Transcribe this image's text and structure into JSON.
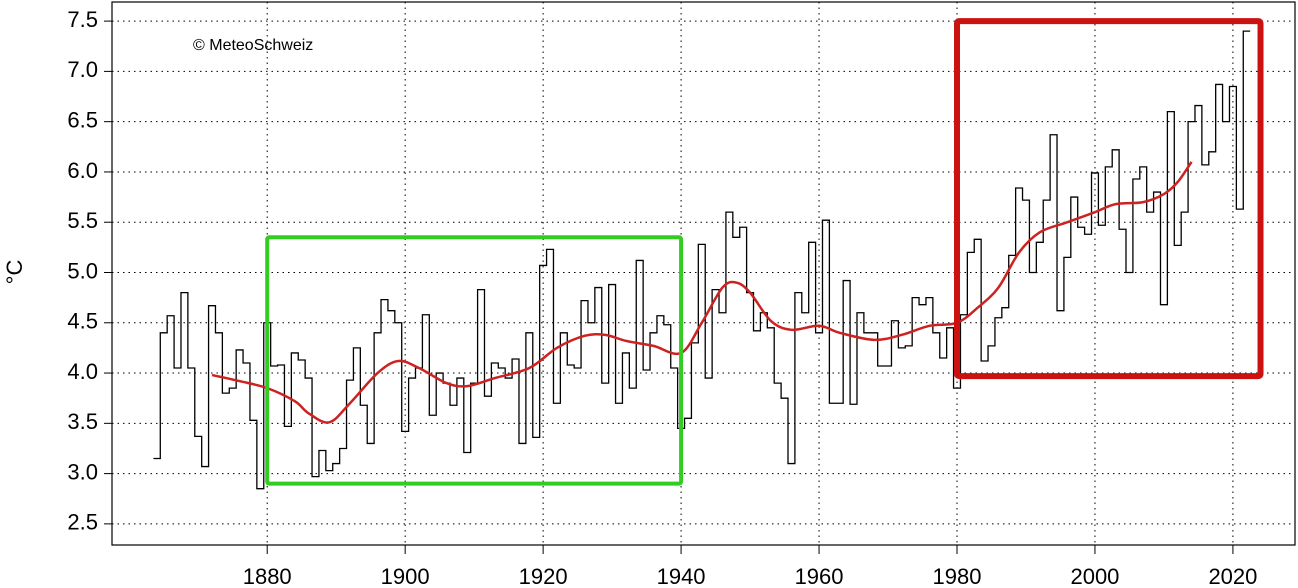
{
  "chart_data": {
    "type": "step",
    "annotation": "© MeteoSchweiz",
    "y_label": "°C",
    "x": [
      1864,
      1865,
      1866,
      1867,
      1868,
      1869,
      1870,
      1871,
      1872,
      1873,
      1874,
      1875,
      1876,
      1877,
      1878,
      1879,
      1880,
      1881,
      1882,
      1883,
      1884,
      1885,
      1886,
      1887,
      1888,
      1889,
      1890,
      1891,
      1892,
      1893,
      1894,
      1895,
      1896,
      1897,
      1898,
      1899,
      1900,
      1901,
      1902,
      1903,
      1904,
      1905,
      1906,
      1907,
      1908,
      1909,
      1910,
      1911,
      1912,
      1913,
      1914,
      1915,
      1916,
      1917,
      1918,
      1919,
      1920,
      1921,
      1922,
      1923,
      1924,
      1925,
      1926,
      1927,
      1928,
      1929,
      1930,
      1931,
      1932,
      1933,
      1934,
      1935,
      1936,
      1937,
      1938,
      1939,
      1940,
      1941,
      1942,
      1943,
      1944,
      1945,
      1946,
      1947,
      1948,
      1949,
      1950,
      1951,
      1952,
      1953,
      1954,
      1955,
      1956,
      1957,
      1958,
      1959,
      1960,
      1961,
      1962,
      1963,
      1964,
      1965,
      1966,
      1967,
      1968,
      1969,
      1970,
      1971,
      1972,
      1973,
      1974,
      1975,
      1976,
      1977,
      1978,
      1979,
      1980,
      1981,
      1982,
      1983,
      1984,
      1985,
      1986,
      1987,
      1988,
      1989,
      1990,
      1991,
      1992,
      1993,
      1994,
      1995,
      1996,
      1997,
      1998,
      1999,
      2000,
      2001,
      2002,
      2003,
      2004,
      2005,
      2006,
      2007,
      2008,
      2009,
      2010,
      2011,
      2012,
      2013,
      2014,
      2015,
      2016,
      2017,
      2018,
      2019,
      2020,
      2021,
      2022
    ],
    "series": [
      {
        "color": "#000000",
        "values": [
          3.15,
          4.4,
          4.57,
          4.05,
          4.8,
          4.05,
          3.37,
          3.07,
          4.67,
          4.4,
          3.8,
          3.85,
          4.23,
          4.1,
          3.53,
          2.85,
          4.5,
          4.07,
          4.08,
          3.47,
          4.2,
          4.13,
          3.95,
          2.97,
          3.23,
          3.03,
          3.1,
          3.25,
          3.93,
          4.25,
          3.68,
          3.3,
          4.4,
          4.73,
          4.62,
          4.5,
          3.42,
          3.95,
          4.05,
          4.58,
          3.58,
          4.0,
          3.9,
          3.68,
          3.95,
          3.21,
          3.9,
          4.83,
          3.77,
          4.1,
          4.05,
          3.95,
          4.14,
          3.3,
          4.4,
          3.36,
          5.07,
          5.23,
          3.7,
          4.4,
          4.08,
          4.05,
          4.72,
          4.5,
          4.85,
          3.9,
          4.88,
          3.7,
          4.2,
          3.85,
          5.12,
          4.03,
          4.4,
          4.57,
          4.48,
          4.05,
          3.45,
          3.55,
          4.3,
          5.28,
          3.95,
          4.83,
          4.6,
          5.6,
          5.35,
          5.45,
          4.8,
          4.42,
          4.6,
          4.45,
          3.9,
          3.75,
          3.1,
          4.8,
          4.6,
          5.3,
          4.4,
          5.52,
          3.7,
          3.7,
          4.92,
          3.69,
          4.6,
          4.4,
          4.4,
          4.07,
          4.07,
          4.52,
          4.25,
          4.27,
          4.75,
          4.68,
          4.75,
          4.4,
          4.15,
          4.45,
          3.85,
          4.58,
          5.2,
          5.33,
          4.12,
          4.27,
          4.55,
          4.65,
          5.17,
          5.84,
          5.72,
          5.0,
          5.3,
          5.72,
          6.37,
          4.62,
          5.15,
          5.75,
          5.45,
          5.38,
          5.99,
          5.47,
          6.05,
          6.22,
          5.43,
          5.0,
          5.93,
          6.05,
          5.6,
          5.8,
          4.68,
          6.6,
          5.27,
          5.6,
          6.5,
          6.66,
          6.07,
          6.2,
          6.87,
          6.5,
          6.85,
          5.63,
          7.4
        ]
      }
    ],
    "smooth": {
      "color": "#cc2222",
      "x": [
        1872,
        1876,
        1880,
        1884,
        1886,
        1889,
        1892,
        1896,
        1899,
        1902,
        1906,
        1909,
        1913,
        1918,
        1922,
        1926,
        1929,
        1932,
        1936,
        1940,
        1943,
        1946,
        1948,
        1950,
        1953,
        1956,
        1960,
        1963,
        1968,
        1972,
        1976,
        1980,
        1983,
        1986,
        1989,
        1992,
        1996,
        2000,
        2003,
        2007,
        2010,
        2012,
        2014
      ],
      "values": [
        3.98,
        3.92,
        3.85,
        3.72,
        3.6,
        3.51,
        3.7,
        4.0,
        4.12,
        4.05,
        3.9,
        3.87,
        3.95,
        4.05,
        4.25,
        4.37,
        4.38,
        4.32,
        4.27,
        4.2,
        4.5,
        4.85,
        4.9,
        4.8,
        4.52,
        4.43,
        4.47,
        4.4,
        4.33,
        4.38,
        4.47,
        4.5,
        4.65,
        4.85,
        5.2,
        5.4,
        5.5,
        5.6,
        5.68,
        5.7,
        5.78,
        5.9,
        6.1
      ]
    },
    "highlights": [
      {
        "color": "#33cc22",
        "x": [
          1880,
          1940
        ],
        "y": [
          2.9,
          5.35
        ]
      },
      {
        "color": "#cc1111",
        "x": [
          1980,
          2024
        ],
        "y": [
          3.97,
          7.5
        ]
      }
    ],
    "xlim": [
      1857.5,
      2029
    ],
    "ylim": [
      2.29,
      7.69
    ],
    "xticks": [
      1880,
      1900,
      1920,
      1940,
      1960,
      1980,
      2000,
      2020
    ],
    "yticks": [
      2.5,
      {
        "value": 3,
        "label": "3.0"
      },
      3.5,
      {
        "value": 4,
        "label": "4.0"
      },
      4.5,
      {
        "value": 5,
        "label": "5.0"
      },
      5.5,
      {
        "value": 6,
        "label": "6.0"
      },
      6.5,
      {
        "value": 7,
        "label": "7.0"
      },
      7.5
    ],
    "grid": true
  }
}
